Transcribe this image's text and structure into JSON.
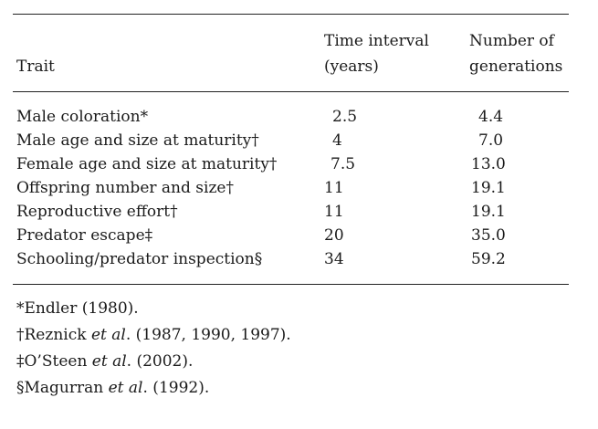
{
  "table": {
    "headers": {
      "trait": "Trait",
      "time_line1": "Time interval",
      "time_line2": "(years)",
      "gen_line1": "Number of",
      "gen_line2": "generations"
    },
    "rows": [
      {
        "trait": "Male coloration*",
        "time": "2.5",
        "generations": "4.4"
      },
      {
        "trait": "Male age and size at maturity†",
        "time": "4",
        "generations": "7.0"
      },
      {
        "trait": "Female age and size at maturity†",
        "time": "7.5",
        "generations": "13.0"
      },
      {
        "trait": "Offspring number and size†",
        "time": "11",
        "generations": "19.1"
      },
      {
        "trait": "Reproductive effort†",
        "time": "11",
        "generations": "19.1"
      },
      {
        "trait": "Predator escape‡",
        "time": "20",
        "generations": "35.0"
      },
      {
        "trait": "Schooling/predator inspection§",
        "time": "34",
        "generations": "59.2"
      }
    ]
  },
  "footnotes": [
    {
      "pre": "*Endler (1980).",
      "etal": "",
      "post": ""
    },
    {
      "pre": "†Reznick ",
      "etal": "et al",
      "post": ". (1987, 1990, 1997)."
    },
    {
      "pre": "‡O’Steen ",
      "etal": "et al",
      "post": ". (2002)."
    },
    {
      "pre": "§Magurran ",
      "etal": "et al",
      "post": ". (1992)."
    }
  ]
}
